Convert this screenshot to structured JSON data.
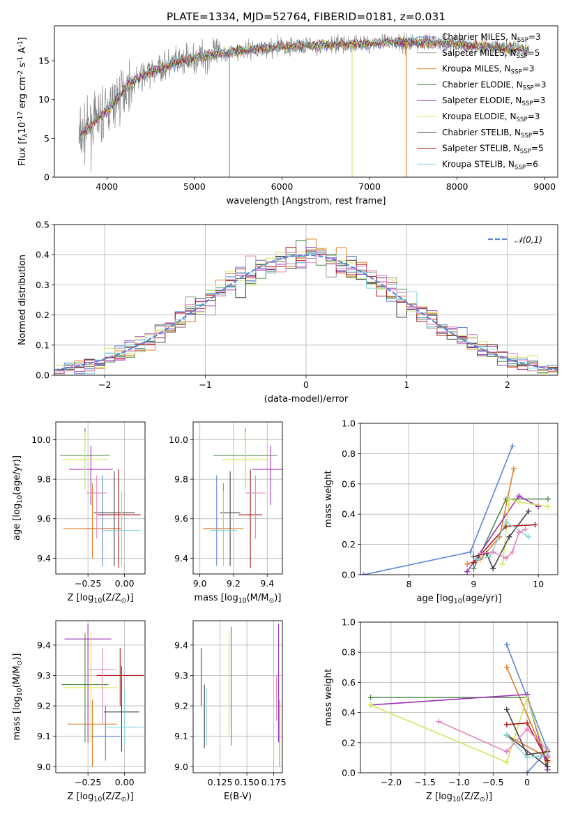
{
  "colors": {
    "Chabrier MILES": "#5b84d8",
    "Salpeter MILES": "#999999",
    "Kroupa MILES": "#e07b21",
    "Chabrier ELODIE": "#4f8a4f",
    "Salpeter ELODIE": "#9b30b6",
    "Kroupa ELODIE": "#d4e65a",
    "Chabrier STELIB": "#444444",
    "Salpeter STELIB": "#b01818",
    "Kroupa STELIB": "#86d4dc",
    "pink": "#e684bf",
    "gaussian": "#5b84d8"
  },
  "chart_data": [
    {
      "id": "spectrum",
      "type": "line",
      "title": "PLATE=1334, MJD=52764, FIBERID=0181, z=0.031",
      "xlabel": "wavelength [Angstrom, rest frame]",
      "ylabel": "Flux [f$_\\lambda$10$^{-17}$ erg cm$^{-2}$ s$^{-1}$ A$^{-1}$]",
      "xlim": [
        3400,
        9150
      ],
      "ylim": [
        0,
        19.5
      ],
      "xticks": [
        4000,
        5000,
        6000,
        7000,
        8000,
        9000
      ],
      "yticks": [
        0,
        5,
        10,
        15
      ],
      "legend": "top-right",
      "series": [
        {
          "name": "Chabrier MILES, N_SSP=3"
        },
        {
          "name": "Salpeter MILES, N_SSP=5"
        },
        {
          "name": "Kroupa MILES, N_SSP=3"
        },
        {
          "name": "Chabrier ELODIE, N_SSP=3"
        },
        {
          "name": "Salpeter ELODIE, N_SSP=3"
        },
        {
          "name": "Kroupa ELODIE, N_SSP=3"
        },
        {
          "name": "Chabrier STELIB, N_SSP=5"
        },
        {
          "name": "Salpeter STELIB, N_SSP=5"
        },
        {
          "name": "Kroupa STELIB, N_SSP=6"
        }
      ],
      "continuum": [
        [
          3680,
          5.0
        ],
        [
          3800,
          6.5
        ],
        [
          3900,
          7.5
        ],
        [
          4000,
          8.5
        ],
        [
          4100,
          9.8
        ],
        [
          4200,
          11.5
        ],
        [
          4400,
          13.0
        ],
        [
          4600,
          14.0
        ],
        [
          4800,
          14.8
        ],
        [
          5000,
          15.3
        ],
        [
          5200,
          15.8
        ],
        [
          5500,
          16.3
        ],
        [
          6000,
          16.8
        ],
        [
          6500,
          17.0
        ],
        [
          7000,
          17.2
        ],
        [
          7400,
          17.4
        ],
        [
          7800,
          17.3
        ],
        [
          8200,
          17.0
        ],
        [
          8600,
          16.6
        ],
        [
          8820,
          16.4
        ]
      ],
      "drop_lines": [
        5400,
        6800,
        7420
      ]
    },
    {
      "id": "residuals",
      "type": "line",
      "xlabel": "(data-model)/error",
      "ylabel": "Normed distribution",
      "xlim": [
        -2.5,
        2.5
      ],
      "ylim": [
        0,
        0.5
      ],
      "xticks": [
        -2,
        -1,
        0,
        1,
        2
      ],
      "yticks": [
        0.0,
        0.1,
        0.2,
        0.3,
        0.4,
        0.5
      ],
      "legend": "top-right",
      "gaussian_label": "$\\mathcal{N}(0,1)$",
      "bin_width": 0.1
    },
    {
      "id": "age_vs_Z",
      "type": "scatter",
      "xlabel": "Z [log$_{10}$(Z/Z$_\\odot$)]",
      "ylabel": "age  [log$_{10}$(age/yr)]",
      "xlim": [
        -0.47,
        0.14
      ],
      "ylim": [
        9.32,
        10.09
      ],
      "xticks": [
        -0.25,
        0.0
      ],
      "yticks": [
        9.4,
        9.6,
        9.8,
        10.0
      ],
      "points": [
        {
          "c": "Chabrier MILES",
          "x": -0.15,
          "y": 9.55,
          "xe": 0.12,
          "yl": 9.36,
          "yh": 9.82
        },
        {
          "c": "Kroupa MILES",
          "x": -0.22,
          "y": 9.55,
          "xe": 0.2,
          "yl": 9.4,
          "yh": 9.78
        },
        {
          "c": "Chabrier ELODIE",
          "x": -0.27,
          "y": 9.92,
          "xe": 0.17,
          "yl": 9.75,
          "yh": 10.06
        },
        {
          "c": "Salpeter ELODIE",
          "x": -0.23,
          "y": 9.85,
          "xe": 0.15,
          "yl": 9.67,
          "yh": 9.97
        },
        {
          "c": "Kroupa ELODIE",
          "x": -0.27,
          "y": 9.9,
          "xe": 0.16,
          "yl": 9.75,
          "yh": 10.04
        },
        {
          "c": "Chabrier STELIB",
          "x": -0.07,
          "y": 9.63,
          "xe": 0.14,
          "yl": 9.36,
          "yh": 9.84
        },
        {
          "c": "Salpeter STELIB",
          "x": -0.04,
          "y": 9.62,
          "xe": 0.15,
          "yl": 9.35,
          "yh": 9.85
        },
        {
          "c": "Kroupa STELIB",
          "x": -0.02,
          "y": 9.54,
          "xe": 0.13,
          "yl": 9.36,
          "yh": 9.74
        },
        {
          "c": "pink",
          "x": -0.19,
          "y": 9.73,
          "xe": 0.07,
          "yl": 9.5,
          "yh": 9.82
        }
      ]
    },
    {
      "id": "age_vs_mass",
      "type": "scatter",
      "xlabel": "mass [log$_{10}$(M/M$_\\odot$)]",
      "xlim": [
        8.96,
        9.49
      ],
      "ylim": [
        9.32,
        10.09
      ],
      "xticks": [
        9.0,
        9.2,
        9.4
      ],
      "yticks": [
        9.4,
        9.6,
        9.8,
        10.0
      ],
      "points": [
        {
          "c": "Chabrier MILES",
          "x": 9.1,
          "y": 9.55,
          "xe": 0.08,
          "yl": 9.36,
          "yh": 9.82
        },
        {
          "c": "Kroupa MILES",
          "x": 9.14,
          "y": 9.55,
          "xe": 0.12,
          "yl": 9.4,
          "yh": 9.78
        },
        {
          "c": "Chabrier ELODIE",
          "x": 9.27,
          "y": 9.92,
          "xe": 0.19,
          "yl": 9.75,
          "yh": 10.06
        },
        {
          "c": "Salpeter ELODIE",
          "x": 9.42,
          "y": 9.85,
          "xe": 0.11,
          "yl": 9.67,
          "yh": 9.97
        },
        {
          "c": "Kroupa ELODIE",
          "x": 9.27,
          "y": 9.9,
          "xe": 0.14,
          "yl": 9.75,
          "yh": 10.04
        },
        {
          "c": "Chabrier STELIB",
          "x": 9.18,
          "y": 9.63,
          "xe": 0.06,
          "yl": 9.36,
          "yh": 9.84
        },
        {
          "c": "Salpeter STELIB",
          "x": 9.3,
          "y": 9.62,
          "xe": 0.07,
          "yl": 9.35,
          "yh": 9.85
        },
        {
          "c": "Kroupa STELIB",
          "x": 9.14,
          "y": 9.54,
          "xe": 0.08,
          "yl": 9.36,
          "yh": 9.74
        },
        {
          "c": "pink",
          "x": 9.33,
          "y": 9.73,
          "xe": 0.06,
          "yl": 9.5,
          "yh": 9.82
        }
      ]
    },
    {
      "id": "weight_vs_age",
      "type": "line",
      "xlabel": "age  [log$_{10}$(age/yr)]",
      "ylabel": "mass weight",
      "xlim": [
        7.25,
        10.3
      ],
      "ylim": [
        0,
        1.0
      ],
      "xticks": [
        8,
        9,
        10
      ],
      "yticks": [
        0.0,
        0.2,
        0.4,
        0.6,
        0.8,
        1.0
      ],
      "series": [
        {
          "c": "Chabrier MILES",
          "pts": [
            [
              7.3,
              0.0
            ],
            [
              8.95,
              0.15
            ],
            [
              9.6,
              0.85
            ]
          ]
        },
        {
          "c": "Kroupa MILES",
          "pts": [
            [
              8.9,
              0.07
            ],
            [
              9.1,
              0.1
            ],
            [
              9.4,
              0.25
            ],
            [
              9.62,
              0.7
            ]
          ]
        },
        {
          "c": "Chabrier ELODIE",
          "pts": [
            [
              9.0,
              0.04
            ],
            [
              9.5,
              0.5
            ],
            [
              10.15,
              0.5
            ]
          ]
        },
        {
          "c": "Salpeter ELODIE",
          "pts": [
            [
              8.9,
              0.02
            ],
            [
              9.7,
              0.52
            ],
            [
              10.0,
              0.45
            ]
          ]
        },
        {
          "c": "Kroupa ELODIE",
          "pts": [
            [
              9.45,
              0.07
            ],
            [
              9.55,
              0.5
            ],
            [
              9.7,
              0.48
            ],
            [
              10.15,
              0.45
            ]
          ]
        },
        {
          "c": "Chabrier STELIB",
          "pts": [
            [
              9.0,
              0.12
            ],
            [
              9.2,
              0.14
            ],
            [
              9.3,
              0.04
            ],
            [
              9.55,
              0.25
            ],
            [
              9.85,
              0.42
            ]
          ]
        },
        {
          "c": "Salpeter STELIB",
          "pts": [
            [
              9.0,
              0.08
            ],
            [
              9.5,
              0.32
            ],
            [
              9.95,
              0.33
            ]
          ]
        },
        {
          "c": "Kroupa STELIB",
          "pts": [
            [
              9.05,
              0.1
            ],
            [
              9.25,
              0.12
            ],
            [
              9.5,
              0.35
            ],
            [
              9.85,
              0.25
            ]
          ]
        },
        {
          "c": "pink",
          "pts": [
            [
              9.1,
              0.14
            ],
            [
              9.3,
              0.15
            ],
            [
              9.5,
              0.11
            ],
            [
              9.6,
              0.15
            ],
            [
              9.7,
              0.28
            ],
            [
              9.8,
              0.3
            ]
          ]
        }
      ]
    },
    {
      "id": "mass_vs_Z",
      "type": "scatter",
      "xlabel": "Z [log$_{10}$(Z/Z$_\\odot$)]",
      "ylabel": "mass [log$_{10}$(M/M$_\\odot$)]",
      "xlim": [
        -0.47,
        0.14
      ],
      "ylim": [
        8.98,
        9.48
      ],
      "xticks": [
        -0.25,
        0.0
      ],
      "yticks": [
        9.0,
        9.1,
        9.2,
        9.3,
        9.4
      ],
      "points": [
        {
          "c": "Chabrier MILES",
          "x": -0.13,
          "y": 9.1,
          "xe": 0.1,
          "yl": 9.02,
          "yh": 9.2
        },
        {
          "c": "Kroupa MILES",
          "x": -0.22,
          "y": 9.14,
          "xe": 0.17,
          "yl": 9.0,
          "yh": 9.22
        },
        {
          "c": "Chabrier ELODIE",
          "x": -0.27,
          "y": 9.27,
          "xe": 0.16,
          "yl": 9.08,
          "yh": 9.44
        },
        {
          "c": "Salpeter ELODIE",
          "x": -0.25,
          "y": 9.42,
          "xe": 0.16,
          "yl": 9.08,
          "yh": 9.47
        },
        {
          "c": "Kroupa ELODIE",
          "x": -0.23,
          "y": 9.26,
          "xe": 0.18,
          "yl": 9.08,
          "yh": 9.44
        },
        {
          "c": "Chabrier STELIB",
          "x": -0.02,
          "y": 9.18,
          "xe": 0.12,
          "yl": 9.05,
          "yh": 9.33
        },
        {
          "c": "Salpeter STELIB",
          "x": -0.03,
          "y": 9.3,
          "xe": 0.16,
          "yl": 9.2,
          "yh": 9.39
        },
        {
          "c": "Kroupa STELIB",
          "x": 0.0,
          "y": 9.13,
          "xe": 0.13,
          "yl": 9.07,
          "yh": 9.25
        },
        {
          "c": "pink",
          "x": -0.15,
          "y": 9.32,
          "xe": 0.09,
          "yl": 9.14,
          "yh": 9.39
        }
      ]
    },
    {
      "id": "mass_vs_ebv",
      "type": "scatter",
      "xlabel": "E(B-V)",
      "xlim": [
        0.1,
        0.183
      ],
      "ylim": [
        8.98,
        9.48
      ],
      "xticks": [
        0.125,
        0.15,
        0.175
      ],
      "yticks": [
        9.0,
        9.1,
        9.2,
        9.3,
        9.4
      ],
      "points": [
        {
          "c": "Salpeter STELIB",
          "x": 0.1075,
          "yl": 9.2,
          "yh": 9.39
        },
        {
          "c": "Chabrier STELIB",
          "x": 0.1105,
          "yl": 9.06,
          "yh": 9.27
        },
        {
          "c": "Kroupa STELIB",
          "x": 0.1125,
          "yl": 9.07,
          "yh": 9.26
        },
        {
          "c": "Kroupa ELODIE",
          "x": 0.1335,
          "yl": 9.1,
          "yh": 9.44
        },
        {
          "c": "Chabrier ELODIE",
          "x": 0.1355,
          "yl": 9.07,
          "yh": 9.46
        },
        {
          "c": "pink",
          "x": 0.1775,
          "yl": 9.15,
          "yh": 9.3
        },
        {
          "c": "Salpeter ELODIE",
          "x": 0.1795,
          "yl": 9.08,
          "yh": 9.47
        },
        {
          "c": "Kroupa MILES",
          "x": 0.1805,
          "yl": 9.0,
          "yh": 9.22
        }
      ]
    },
    {
      "id": "weight_vs_Z",
      "type": "line",
      "xlabel": "Z [log$_{10}$(Z/Z$_\\odot$)]",
      "ylabel": "mass weight",
      "xlim": [
        -2.45,
        0.45
      ],
      "ylim": [
        0,
        1.0
      ],
      "xticks": [
        -2.0,
        -1.5,
        -1.0,
        -0.5,
        0.0
      ],
      "yticks": [
        0.0,
        0.2,
        0.4,
        0.6,
        0.8,
        1.0
      ],
      "series": [
        {
          "c": "Chabrier MILES",
          "pts": [
            [
              -0.3,
              0.85
            ],
            [
              0.3,
              0.15
            ],
            [
              0.0,
              0.0
            ]
          ]
        },
        {
          "c": "Kroupa MILES",
          "pts": [
            [
              -0.3,
              0.7
            ],
            [
              0.3,
              0.07
            ],
            [
              0.3,
              0.1
            ],
            [
              -0.3,
              0.25
            ]
          ]
        },
        {
          "c": "Chabrier ELODIE",
          "pts": [
            [
              -2.3,
              0.5
            ],
            [
              0.0,
              0.5
            ],
            [
              0.3,
              0.04
            ]
          ]
        },
        {
          "c": "Salpeter ELODIE",
          "pts": [
            [
              -2.3,
              0.45
            ],
            [
              0.0,
              0.52
            ],
            [
              0.3,
              0.02
            ]
          ]
        },
        {
          "c": "Kroupa ELODIE",
          "pts": [
            [
              -2.3,
              0.45
            ],
            [
              -0.3,
              0.07
            ],
            [
              0.0,
              0.5
            ],
            [
              0.3,
              0.07
            ]
          ]
        },
        {
          "c": "Chabrier STELIB",
          "pts": [
            [
              -0.3,
              0.42
            ],
            [
              0.0,
              0.12
            ],
            [
              0.3,
              0.14
            ],
            [
              0.3,
              0.04
            ],
            [
              -0.3,
              0.25
            ]
          ]
        },
        {
          "c": "Salpeter STELIB",
          "pts": [
            [
              -0.3,
              0.32
            ],
            [
              0.0,
              0.33
            ],
            [
              0.3,
              0.08
            ]
          ]
        },
        {
          "c": "Kroupa STELIB",
          "pts": [
            [
              -0.3,
              0.25
            ],
            [
              0.0,
              0.1
            ],
            [
              0.3,
              0.12
            ],
            [
              0.3,
              0.16
            ]
          ]
        },
        {
          "c": "pink",
          "pts": [
            [
              -1.3,
              0.34
            ],
            [
              -0.3,
              0.14
            ],
            [
              0.0,
              0.29
            ],
            [
              0.3,
              0.15
            ],
            [
              0.3,
              0.11
            ]
          ]
        }
      ]
    }
  ]
}
